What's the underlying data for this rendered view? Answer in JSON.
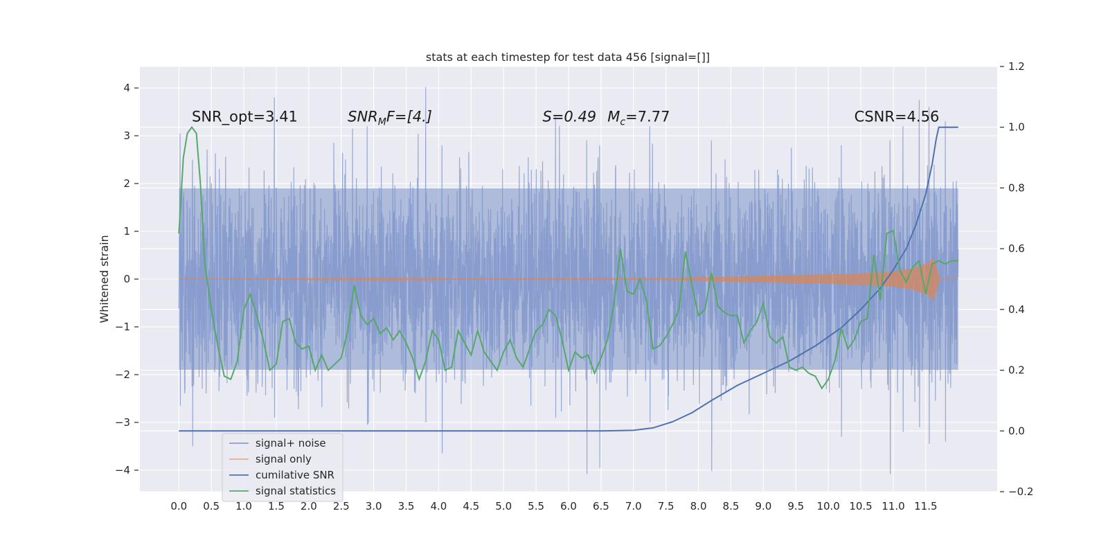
{
  "chart_data": {
    "type": "line",
    "title": "stats at each timestep for test data 456 [signal=[]]",
    "xlabel": "",
    "ylabel": "Whitened strain",
    "xlim": [
      -0.6,
      12.6
    ],
    "ylim": [
      -4.45,
      4.45
    ],
    "y2lim": [
      -0.2,
      1.2
    ],
    "x_ticks": [
      0.0,
      0.5,
      1.0,
      1.5,
      2.0,
      2.5,
      3.0,
      3.5,
      4.0,
      4.5,
      5.0,
      5.5,
      6.0,
      6.5,
      7.0,
      7.5,
      8.0,
      8.5,
      9.0,
      9.5,
      10.0,
      10.5,
      11.0,
      11.5
    ],
    "x_tick_labels": [
      "0.0",
      "0.5",
      "1.0",
      "1.5",
      "2.0",
      "2.5",
      "3.0",
      "3.5",
      "4.0",
      "4.5",
      "5.0",
      "5.5",
      "6.0",
      "6.5",
      "7.0",
      "7.5",
      "8.0",
      "8.5",
      "9.0",
      "9.5",
      "10.0",
      "10.5",
      "11.0",
      "11.5"
    ],
    "y_ticks": [
      -4,
      -3,
      -2,
      -1,
      0,
      1,
      2,
      3,
      4
    ],
    "y_tick_labels": [
      "−4",
      "−3",
      "−2",
      "−1",
      "0",
      "1",
      "2",
      "3",
      "4"
    ],
    "y2_ticks": [
      -0.2,
      0.0,
      0.2,
      0.4,
      0.6,
      0.8,
      1.0,
      1.2
    ],
    "y2_tick_labels": [
      "−0.2",
      "0.0",
      "0.2",
      "0.4",
      "0.6",
      "0.8",
      "1.0",
      "1.2"
    ],
    "grid": true,
    "legend_position": "lower-left",
    "colors": {
      "signal_noise": "#7b93c8",
      "signal_only": "#dd8452",
      "cumulative_snr": "#4c72b0",
      "signal_statistics": "#55a868",
      "background": "#eaeaf2",
      "grid": "#ffffff"
    },
    "annotations": [
      {
        "text": "SNR_opt=3.41",
        "x": 0.2,
        "y": 3.3
      },
      {
        "text": "S=0.49",
        "x": 5.6,
        "y": 3.3
      },
      {
        "text": "CSNR=4.56",
        "x": 10.4,
        "y": 3.3
      }
    ],
    "annotation_mathy": {
      "snr_mf_base": "SNR",
      "snr_mf_sub": "M",
      "snr_mf_rest": "F=[4.]",
      "snr_mf_x": 2.6,
      "mc_base": "M",
      "mc_sub": "c",
      "mc_rest": "=7.77",
      "mc_x": 6.6,
      "y": 3.3
    },
    "series": [
      {
        "name": "signal+ noise",
        "axis": "left",
        "x_range": [
          0.0,
          12.0
        ],
        "typical_range": [
          -1.9,
          1.9
        ],
        "extremes": [
          {
            "x": 0.02,
            "min": -2.65,
            "max": 3.05
          },
          {
            "x": 0.21,
            "min": -3.5,
            "max": 2.5
          },
          {
            "x": 1.47,
            "min": -2.9,
            "max": 3.8
          },
          {
            "x": 2.9,
            "min": -3.05,
            "max": 3.2
          },
          {
            "x": 3.8,
            "min": -3.0,
            "max": 4.02
          },
          {
            "x": 4.05,
            "min": -3.65,
            "max": 2.8
          },
          {
            "x": 5.8,
            "min": -2.9,
            "max": 3.4
          },
          {
            "x": 6.28,
            "min": -4.08,
            "max": 2.9
          },
          {
            "x": 6.48,
            "min": -3.95,
            "max": 2.8
          },
          {
            "x": 7.25,
            "min": -3.0,
            "max": 3.2
          },
          {
            "x": 8.2,
            "min": -4.02,
            "max": 2.9
          },
          {
            "x": 10.2,
            "min": -3.3,
            "max": 2.8
          },
          {
            "x": 10.95,
            "min": -4.08,
            "max": 2.9
          },
          {
            "x": 11.15,
            "min": -3.2,
            "max": 3.2
          },
          {
            "x": 11.4,
            "min": -3.1,
            "max": 3.75
          },
          {
            "x": 11.55,
            "min": -3.45,
            "max": 3.6
          },
          {
            "x": 11.8,
            "min": -3.4,
            "max": 3.3
          }
        ]
      },
      {
        "name": "signal only",
        "axis": "left",
        "envelope_x": [
          0.0,
          7.5,
          8.0,
          9.0,
          10.0,
          10.5,
          11.0,
          11.3,
          11.55,
          11.62,
          11.68,
          11.72,
          12.0
        ],
        "envelope_amp": [
          0.0,
          0.02,
          0.04,
          0.07,
          0.1,
          0.12,
          0.16,
          0.22,
          0.35,
          0.45,
          0.18,
          0.0,
          0.0
        ]
      },
      {
        "name": "cumilative SNR",
        "axis": "right",
        "x": [
          0.0,
          6.5,
          7.0,
          7.3,
          7.6,
          7.9,
          8.2,
          8.6,
          9.0,
          9.4,
          9.8,
          10.2,
          10.5,
          10.8,
          11.0,
          11.2,
          11.35,
          11.5,
          11.6,
          11.66,
          11.7,
          12.0
        ],
        "values": [
          0.0,
          0.0,
          0.002,
          0.01,
          0.03,
          0.06,
          0.1,
          0.15,
          0.19,
          0.23,
          0.28,
          0.34,
          0.4,
          0.47,
          0.53,
          0.6,
          0.68,
          0.78,
          0.88,
          0.96,
          1.0,
          1.0
        ]
      },
      {
        "name": "signal statistics",
        "axis": "right",
        "x": [
          0.0,
          0.07,
          0.13,
          0.2,
          0.27,
          0.33,
          0.4,
          0.5,
          0.6,
          0.7,
          0.8,
          0.9,
          1.0,
          1.1,
          1.2,
          1.3,
          1.4,
          1.5,
          1.6,
          1.7,
          1.8,
          1.9,
          2.0,
          2.1,
          2.2,
          2.3,
          2.4,
          2.5,
          2.6,
          2.7,
          2.8,
          2.9,
          3.0,
          3.1,
          3.2,
          3.3,
          3.4,
          3.5,
          3.6,
          3.7,
          3.8,
          3.9,
          4.0,
          4.1,
          4.2,
          4.3,
          4.4,
          4.5,
          4.6,
          4.7,
          4.8,
          4.9,
          5.0,
          5.1,
          5.2,
          5.3,
          5.4,
          5.5,
          5.6,
          5.7,
          5.8,
          5.9,
          6.0,
          6.1,
          6.2,
          6.3,
          6.4,
          6.5,
          6.6,
          6.7,
          6.8,
          6.9,
          7.0,
          7.1,
          7.2,
          7.3,
          7.4,
          7.5,
          7.6,
          7.7,
          7.8,
          7.9,
          8.0,
          8.1,
          8.2,
          8.3,
          8.4,
          8.5,
          8.6,
          8.7,
          8.8,
          8.9,
          9.0,
          9.1,
          9.2,
          9.3,
          9.4,
          9.5,
          9.6,
          9.7,
          9.8,
          9.9,
          10.0,
          10.1,
          10.2,
          10.3,
          10.4,
          10.5,
          10.6,
          10.7,
          10.8,
          10.9,
          11.0,
          11.1,
          11.2,
          11.3,
          11.4,
          11.5,
          11.6,
          11.7,
          11.8,
          11.9,
          12.0
        ],
        "values": [
          0.65,
          0.9,
          0.98,
          1.0,
          0.98,
          0.82,
          0.55,
          0.4,
          0.28,
          0.18,
          0.17,
          0.23,
          0.4,
          0.45,
          0.38,
          0.3,
          0.2,
          0.22,
          0.36,
          0.37,
          0.29,
          0.27,
          0.28,
          0.2,
          0.25,
          0.2,
          0.22,
          0.24,
          0.33,
          0.48,
          0.38,
          0.35,
          0.37,
          0.32,
          0.34,
          0.3,
          0.33,
          0.29,
          0.24,
          0.17,
          0.23,
          0.33,
          0.3,
          0.2,
          0.21,
          0.33,
          0.29,
          0.25,
          0.33,
          0.26,
          0.23,
          0.2,
          0.26,
          0.3,
          0.24,
          0.21,
          0.27,
          0.33,
          0.35,
          0.4,
          0.38,
          0.3,
          0.2,
          0.26,
          0.24,
          0.25,
          0.19,
          0.24,
          0.3,
          0.42,
          0.6,
          0.46,
          0.45,
          0.5,
          0.43,
          0.27,
          0.28,
          0.31,
          0.35,
          0.4,
          0.59,
          0.48,
          0.38,
          0.4,
          0.52,
          0.41,
          0.39,
          0.38,
          0.38,
          0.29,
          0.33,
          0.36,
          0.42,
          0.31,
          0.29,
          0.31,
          0.21,
          0.2,
          0.21,
          0.19,
          0.18,
          0.14,
          0.17,
          0.23,
          0.34,
          0.27,
          0.3,
          0.36,
          0.37,
          0.58,
          0.43,
          0.65,
          0.66,
          0.53,
          0.49,
          0.54,
          0.56,
          0.45,
          0.55,
          0.56,
          0.55,
          0.56,
          0.56
        ]
      }
    ]
  }
}
